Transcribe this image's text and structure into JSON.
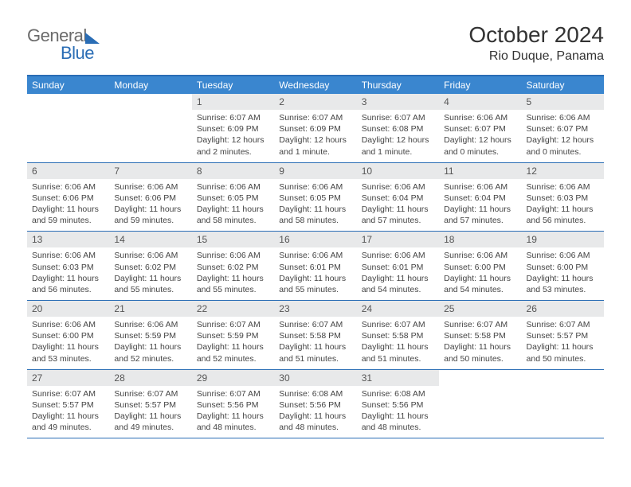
{
  "brand": {
    "word1": "General",
    "word2": "Blue"
  },
  "header": {
    "title": "October 2024",
    "location": "Rio Duque, Panama"
  },
  "colors": {
    "header_bar": "#3a86cf",
    "border": "#2a6db5",
    "daynum_bg": "#e8e9ea",
    "text": "#333333",
    "brand_gray": "#6b6b6b",
    "background": "#ffffff"
  },
  "fonts": {
    "title_size": 28,
    "location_size": 16,
    "dow_size": 12,
    "daynum_size": 12,
    "body_size": 10.5
  },
  "days_of_week": [
    "Sunday",
    "Monday",
    "Tuesday",
    "Wednesday",
    "Thursday",
    "Friday",
    "Saturday"
  ],
  "calendar": {
    "type": "calendar",
    "start_weekday": "Sunday",
    "first_day_column_index": 2,
    "num_days": 31,
    "cells": [
      {
        "day": "",
        "sunrise": "",
        "sunset": "",
        "daylight": ""
      },
      {
        "day": "",
        "sunrise": "",
        "sunset": "",
        "daylight": ""
      },
      {
        "day": "1",
        "sunrise": "Sunrise: 6:07 AM",
        "sunset": "Sunset: 6:09 PM",
        "daylight": "Daylight: 12 hours and 2 minutes."
      },
      {
        "day": "2",
        "sunrise": "Sunrise: 6:07 AM",
        "sunset": "Sunset: 6:09 PM",
        "daylight": "Daylight: 12 hours and 1 minute."
      },
      {
        "day": "3",
        "sunrise": "Sunrise: 6:07 AM",
        "sunset": "Sunset: 6:08 PM",
        "daylight": "Daylight: 12 hours and 1 minute."
      },
      {
        "day": "4",
        "sunrise": "Sunrise: 6:06 AM",
        "sunset": "Sunset: 6:07 PM",
        "daylight": "Daylight: 12 hours and 0 minutes."
      },
      {
        "day": "5",
        "sunrise": "Sunrise: 6:06 AM",
        "sunset": "Sunset: 6:07 PM",
        "daylight": "Daylight: 12 hours and 0 minutes."
      },
      {
        "day": "6",
        "sunrise": "Sunrise: 6:06 AM",
        "sunset": "Sunset: 6:06 PM",
        "daylight": "Daylight: 11 hours and 59 minutes."
      },
      {
        "day": "7",
        "sunrise": "Sunrise: 6:06 AM",
        "sunset": "Sunset: 6:06 PM",
        "daylight": "Daylight: 11 hours and 59 minutes."
      },
      {
        "day": "8",
        "sunrise": "Sunrise: 6:06 AM",
        "sunset": "Sunset: 6:05 PM",
        "daylight": "Daylight: 11 hours and 58 minutes."
      },
      {
        "day": "9",
        "sunrise": "Sunrise: 6:06 AM",
        "sunset": "Sunset: 6:05 PM",
        "daylight": "Daylight: 11 hours and 58 minutes."
      },
      {
        "day": "10",
        "sunrise": "Sunrise: 6:06 AM",
        "sunset": "Sunset: 6:04 PM",
        "daylight": "Daylight: 11 hours and 57 minutes."
      },
      {
        "day": "11",
        "sunrise": "Sunrise: 6:06 AM",
        "sunset": "Sunset: 6:04 PM",
        "daylight": "Daylight: 11 hours and 57 minutes."
      },
      {
        "day": "12",
        "sunrise": "Sunrise: 6:06 AM",
        "sunset": "Sunset: 6:03 PM",
        "daylight": "Daylight: 11 hours and 56 minutes."
      },
      {
        "day": "13",
        "sunrise": "Sunrise: 6:06 AM",
        "sunset": "Sunset: 6:03 PM",
        "daylight": "Daylight: 11 hours and 56 minutes."
      },
      {
        "day": "14",
        "sunrise": "Sunrise: 6:06 AM",
        "sunset": "Sunset: 6:02 PM",
        "daylight": "Daylight: 11 hours and 55 minutes."
      },
      {
        "day": "15",
        "sunrise": "Sunrise: 6:06 AM",
        "sunset": "Sunset: 6:02 PM",
        "daylight": "Daylight: 11 hours and 55 minutes."
      },
      {
        "day": "16",
        "sunrise": "Sunrise: 6:06 AM",
        "sunset": "Sunset: 6:01 PM",
        "daylight": "Daylight: 11 hours and 55 minutes."
      },
      {
        "day": "17",
        "sunrise": "Sunrise: 6:06 AM",
        "sunset": "Sunset: 6:01 PM",
        "daylight": "Daylight: 11 hours and 54 minutes."
      },
      {
        "day": "18",
        "sunrise": "Sunrise: 6:06 AM",
        "sunset": "Sunset: 6:00 PM",
        "daylight": "Daylight: 11 hours and 54 minutes."
      },
      {
        "day": "19",
        "sunrise": "Sunrise: 6:06 AM",
        "sunset": "Sunset: 6:00 PM",
        "daylight": "Daylight: 11 hours and 53 minutes."
      },
      {
        "day": "20",
        "sunrise": "Sunrise: 6:06 AM",
        "sunset": "Sunset: 6:00 PM",
        "daylight": "Daylight: 11 hours and 53 minutes."
      },
      {
        "day": "21",
        "sunrise": "Sunrise: 6:06 AM",
        "sunset": "Sunset: 5:59 PM",
        "daylight": "Daylight: 11 hours and 52 minutes."
      },
      {
        "day": "22",
        "sunrise": "Sunrise: 6:07 AM",
        "sunset": "Sunset: 5:59 PM",
        "daylight": "Daylight: 11 hours and 52 minutes."
      },
      {
        "day": "23",
        "sunrise": "Sunrise: 6:07 AM",
        "sunset": "Sunset: 5:58 PM",
        "daylight": "Daylight: 11 hours and 51 minutes."
      },
      {
        "day": "24",
        "sunrise": "Sunrise: 6:07 AM",
        "sunset": "Sunset: 5:58 PM",
        "daylight": "Daylight: 11 hours and 51 minutes."
      },
      {
        "day": "25",
        "sunrise": "Sunrise: 6:07 AM",
        "sunset": "Sunset: 5:58 PM",
        "daylight": "Daylight: 11 hours and 50 minutes."
      },
      {
        "day": "26",
        "sunrise": "Sunrise: 6:07 AM",
        "sunset": "Sunset: 5:57 PM",
        "daylight": "Daylight: 11 hours and 50 minutes."
      },
      {
        "day": "27",
        "sunrise": "Sunrise: 6:07 AM",
        "sunset": "Sunset: 5:57 PM",
        "daylight": "Daylight: 11 hours and 49 minutes."
      },
      {
        "day": "28",
        "sunrise": "Sunrise: 6:07 AM",
        "sunset": "Sunset: 5:57 PM",
        "daylight": "Daylight: 11 hours and 49 minutes."
      },
      {
        "day": "29",
        "sunrise": "Sunrise: 6:07 AM",
        "sunset": "Sunset: 5:56 PM",
        "daylight": "Daylight: 11 hours and 48 minutes."
      },
      {
        "day": "30",
        "sunrise": "Sunrise: 6:08 AM",
        "sunset": "Sunset: 5:56 PM",
        "daylight": "Daylight: 11 hours and 48 minutes."
      },
      {
        "day": "31",
        "sunrise": "Sunrise: 6:08 AM",
        "sunset": "Sunset: 5:56 PM",
        "daylight": "Daylight: 11 hours and 48 minutes."
      },
      {
        "day": "",
        "sunrise": "",
        "sunset": "",
        "daylight": ""
      },
      {
        "day": "",
        "sunrise": "",
        "sunset": "",
        "daylight": ""
      }
    ]
  }
}
